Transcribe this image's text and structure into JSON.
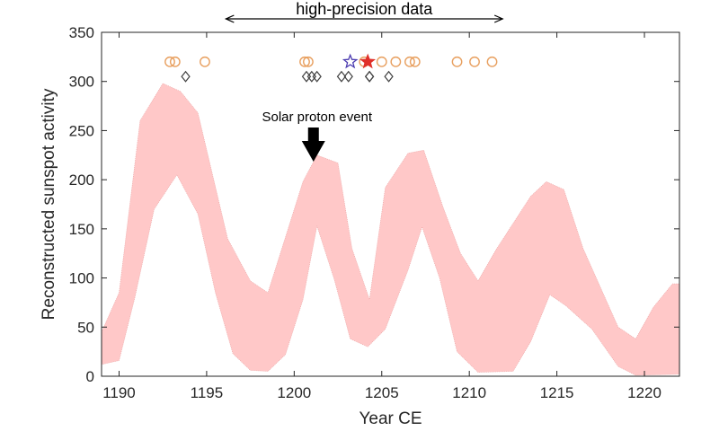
{
  "chart_data": {
    "type": "area",
    "xlabel": "Year CE",
    "ylabel": "Reconstructed sunspot activity",
    "xlim": [
      1189,
      1222
    ],
    "ylim": [
      0,
      350
    ],
    "x_ticks": [
      1190,
      1195,
      1200,
      1205,
      1210,
      1215,
      1220
    ],
    "y_ticks": [
      0,
      50,
      100,
      150,
      200,
      250,
      300,
      350
    ],
    "grid": false,
    "band": {
      "color": "#ffc8c8",
      "upper": [
        [
          1189,
          45
        ],
        [
          1190,
          85
        ],
        [
          1191.2,
          260
        ],
        [
          1192.5,
          298
        ],
        [
          1193.5,
          290
        ],
        [
          1194.5,
          268
        ],
        [
          1196.2,
          140
        ],
        [
          1197.5,
          97
        ],
        [
          1198.5,
          85
        ],
        [
          1200.5,
          198
        ],
        [
          1201.3,
          225
        ],
        [
          1202.5,
          217
        ],
        [
          1203.3,
          130
        ],
        [
          1204.3,
          78
        ],
        [
          1205.2,
          192
        ],
        [
          1206.5,
          227
        ],
        [
          1207.4,
          230
        ],
        [
          1208.5,
          172
        ],
        [
          1209.5,
          125
        ],
        [
          1210.5,
          97
        ],
        [
          1211.5,
          128
        ],
        [
          1213.5,
          183
        ],
        [
          1214.4,
          198
        ],
        [
          1215.4,
          190
        ],
        [
          1216.5,
          130
        ],
        [
          1218.5,
          50
        ],
        [
          1219.5,
          38
        ],
        [
          1220.5,
          70
        ],
        [
          1221.6,
          94
        ],
        [
          1222,
          94
        ]
      ],
      "lower": [
        [
          1189,
          12
        ],
        [
          1190,
          16
        ],
        [
          1190.9,
          80
        ],
        [
          1192,
          170
        ],
        [
          1193.3,
          205
        ],
        [
          1194.5,
          165
        ],
        [
          1195.5,
          85
        ],
        [
          1196.5,
          23
        ],
        [
          1197.5,
          6
        ],
        [
          1198.5,
          5
        ],
        [
          1199.5,
          22
        ],
        [
          1200.5,
          78
        ],
        [
          1201.3,
          153
        ],
        [
          1202.3,
          98
        ],
        [
          1203.2,
          38
        ],
        [
          1204.2,
          30
        ],
        [
          1205.2,
          48
        ],
        [
          1206.5,
          108
        ],
        [
          1207.3,
          152
        ],
        [
          1208.3,
          100
        ],
        [
          1209.3,
          25
        ],
        [
          1210.5,
          4
        ],
        [
          1212.5,
          5
        ],
        [
          1213.5,
          35
        ],
        [
          1214.6,
          83
        ],
        [
          1215.5,
          72
        ],
        [
          1217,
          48
        ],
        [
          1218.5,
          10
        ],
        [
          1219.5,
          1
        ],
        [
          1222,
          2
        ]
      ]
    },
    "markers": {
      "circles": {
        "color": "#e8a060",
        "y": 320,
        "x": [
          1192.9,
          1193.2,
          1194.9,
          1200.6,
          1200.8,
          1204.0,
          1205.0,
          1205.8,
          1206.6,
          1206.9,
          1209.3,
          1210.3,
          1211.3
        ]
      },
      "diamonds": {
        "color": "#404040",
        "y": 305,
        "x": [
          1193.8,
          1200.7,
          1201.0,
          1201.3,
          1202.7,
          1203.1,
          1204.3,
          1204.3,
          1205.4
        ]
      },
      "stars": [
        {
          "x": 1203.2,
          "y": 320,
          "color": "#4b3bb0",
          "filled": false
        },
        {
          "x": 1204.2,
          "y": 320,
          "color": "#e0302a",
          "filled": true
        }
      ]
    },
    "annotations": [
      {
        "id": "bracket",
        "text": "high-precision data",
        "x_start": 1196.1,
        "x_end": 1211.9
      },
      {
        "id": "arrow",
        "text": "Solar proton event",
        "x": 1201.1
      }
    ]
  }
}
